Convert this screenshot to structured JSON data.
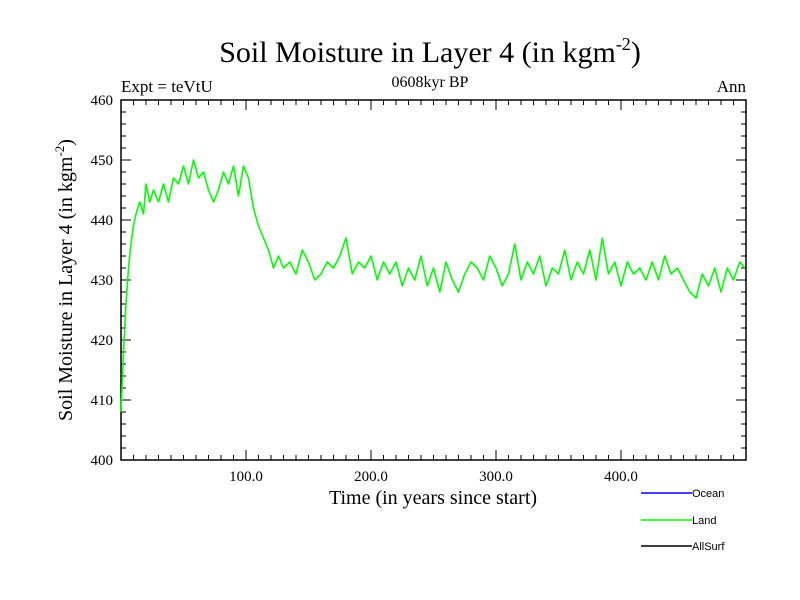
{
  "chart_data": {
    "type": "line",
    "title": "Soil Moisture in Layer 4 (in kgm",
    "title_sup": "-2",
    "title_close": ")",
    "subtitle": "0608kyr BP",
    "expt_label": "Expt = teVtU",
    "period_label": "Ann",
    "xlabel": "Time (in years since start)",
    "ylabel": "Soil Moisture in Layer 4 (in kgm",
    "ylabel_sup": "-2",
    "ylabel_close": ")",
    "xlim": [
      0,
      500
    ],
    "ylim": [
      400,
      460
    ],
    "x_ticks": [
      100,
      200,
      300,
      400
    ],
    "x_tick_labels": [
      "100.0",
      "200.0",
      "300.0",
      "400.0"
    ],
    "y_ticks": [
      400,
      410,
      420,
      430,
      440,
      450,
      460
    ],
    "y_tick_labels": [
      "400",
      "410",
      "420",
      "430",
      "440",
      "450",
      "460"
    ],
    "grid": false,
    "legend_position": "bottom-right",
    "series": [
      {
        "name": "Ocean",
        "color": "#0000ff",
        "x": [],
        "y": []
      },
      {
        "name": "Land",
        "color": "#00ff00",
        "x": [
          0,
          2,
          4,
          6,
          8,
          10,
          12,
          15,
          18,
          20,
          23,
          26,
          30,
          34,
          38,
          42,
          46,
          50,
          54,
          58,
          62,
          66,
          70,
          74,
          78,
          82,
          86,
          90,
          94,
          98,
          102,
          106,
          110,
          114,
          118,
          122,
          126,
          130,
          135,
          140,
          145,
          150,
          155,
          160,
          165,
          170,
          175,
          180,
          185,
          190,
          195,
          200,
          205,
          210,
          215,
          220,
          225,
          230,
          235,
          240,
          245,
          250,
          255,
          260,
          265,
          270,
          275,
          280,
          285,
          290,
          295,
          300,
          305,
          310,
          315,
          320,
          325,
          330,
          335,
          340,
          345,
          350,
          355,
          360,
          365,
          370,
          375,
          380,
          385,
          390,
          395,
          400,
          405,
          410,
          415,
          420,
          425,
          430,
          435,
          440,
          445,
          450,
          455,
          460,
          465,
          470,
          475,
          480,
          485,
          490,
          495,
          499
        ],
        "y": [
          408,
          418,
          426,
          432,
          436,
          439,
          441,
          443,
          441,
          446,
          443,
          445,
          443,
          446,
          443,
          447,
          446,
          449,
          446,
          450,
          447,
          448,
          445,
          443,
          445,
          448,
          446,
          449,
          444,
          449,
          447,
          442,
          439,
          437,
          435,
          432,
          434,
          432,
          433,
          431,
          435,
          433,
          430,
          431,
          433,
          432,
          434,
          437,
          431,
          433,
          432,
          434,
          430,
          433,
          431,
          433,
          429,
          432,
          430,
          434,
          429,
          432,
          428,
          433,
          430,
          428,
          431,
          433,
          432,
          430,
          434,
          432,
          429,
          431,
          436,
          430,
          433,
          431,
          434,
          429,
          432,
          431,
          435,
          430,
          433,
          431,
          435,
          430,
          437,
          431,
          433,
          429,
          433,
          431,
          432,
          430,
          433,
          430,
          434,
          431,
          432,
          430,
          428,
          427,
          431,
          429,
          432,
          428,
          432,
          430,
          433,
          432
        ]
      },
      {
        "name": "AllSurf",
        "color": "#000000",
        "x": [],
        "y": []
      }
    ]
  }
}
